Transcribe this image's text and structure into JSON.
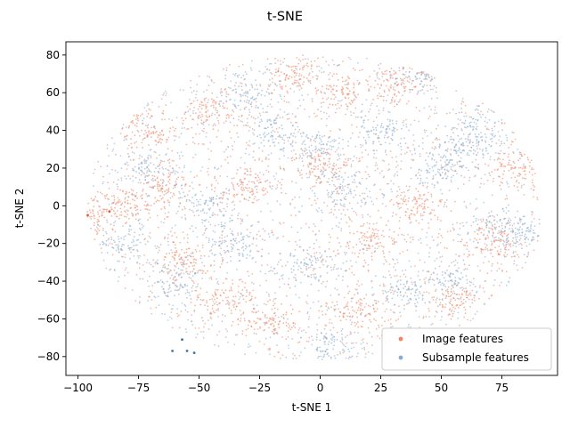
{
  "chart_data": {
    "type": "scatter",
    "title": "t-SNE",
    "xlabel": "t-SNE 1",
    "ylabel": "t-SNE 2",
    "xlim": [
      -105,
      98
    ],
    "ylim": [
      -90,
      87
    ],
    "xticks": [
      -100,
      -75,
      -50,
      -25,
      0,
      25,
      50,
      75
    ],
    "yticks": [
      -80,
      -60,
      -40,
      -20,
      0,
      20,
      40,
      60,
      80
    ],
    "grid": false,
    "legend_position": "lower-right",
    "series": [
      {
        "name": "Image features",
        "color": "#f4845f",
        "cluster_centers": [
          [
            -70,
            40
          ],
          [
            -65,
            10
          ],
          [
            -80,
            0
          ],
          [
            -45,
            50
          ],
          [
            -40,
            -50
          ],
          [
            -20,
            -60
          ],
          [
            -10,
            70
          ],
          [
            0,
            20
          ],
          [
            10,
            60
          ],
          [
            20,
            -20
          ],
          [
            30,
            65
          ],
          [
            45,
            75
          ],
          [
            40,
            0
          ],
          [
            55,
            -50
          ],
          [
            70,
            -20
          ],
          [
            80,
            20
          ],
          [
            -30,
            10
          ],
          [
            -55,
            -30
          ],
          [
            -95,
            -5
          ],
          [
            15,
            -55
          ]
        ],
        "outlier_points": [
          [
            -96,
            -5
          ],
          [
            -87,
            -3
          ]
        ]
      },
      {
        "name": "Subsample features",
        "color": "#8aaccd",
        "cluster_centers": [
          [
            -80,
            -20
          ],
          [
            -60,
            -40
          ],
          [
            -45,
            0
          ],
          [
            -30,
            60
          ],
          [
            -20,
            40
          ],
          [
            -5,
            -30
          ],
          [
            5,
            -75
          ],
          [
            10,
            10
          ],
          [
            25,
            40
          ],
          [
            35,
            -45
          ],
          [
            50,
            20
          ],
          [
            65,
            40
          ],
          [
            75,
            -10
          ],
          [
            85,
            -15
          ],
          [
            -70,
            20
          ],
          [
            0,
            30
          ],
          [
            40,
            70
          ],
          [
            55,
            -40
          ],
          [
            60,
            30
          ],
          [
            -35,
            -20
          ]
        ],
        "outlier_points": [
          [
            -61,
            -77
          ],
          [
            -52,
            -78
          ],
          [
            -57,
            -71
          ],
          [
            -55,
            -77
          ]
        ]
      }
    ]
  },
  "legend": {
    "items": [
      "Image features",
      "Subsample features"
    ]
  }
}
